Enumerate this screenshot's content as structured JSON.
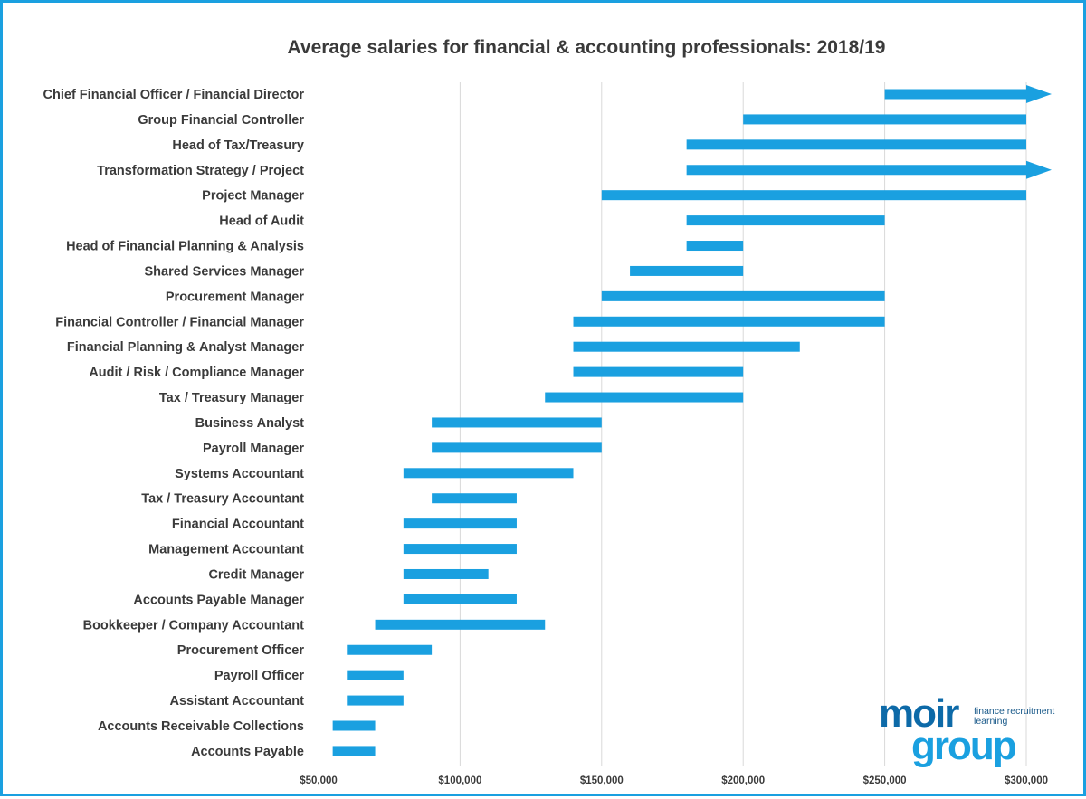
{
  "chart_data": {
    "type": "bar",
    "subtype": "floating-range-horizontal",
    "title": "Average salaries for financial & accounting professionals: 2018/19",
    "xlim": [
      50000,
      300000
    ],
    "x_ticks": [
      50000,
      100000,
      150000,
      200000,
      250000,
      300000
    ],
    "x_tick_labels": [
      "$50,000",
      "$100,000",
      "$150,000",
      "$200,000",
      "$250,000",
      "$300,000"
    ],
    "grid": "vertical",
    "bar_color": "#1aa0e0",
    "categories": [
      "Chief Financial Officer / Financial Director",
      "Group Financial Controller",
      "Head of Tax/Treasury",
      "Transformation Strategy / Project",
      "Project Manager",
      "Head of Audit",
      "Head of Financial Planning & Analysis",
      "Shared Services Manager",
      "Procurement Manager",
      "Financial Controller / Financial Manager",
      "Financial Planning & Analyst Manager",
      "Audit / Risk / Compliance Manager",
      "Tax / Treasury Manager",
      "Business Analyst",
      "Payroll Manager",
      "Systems Accountant",
      "Tax / Treasury Accountant",
      "Financial Accountant",
      "Management Accountant",
      "Credit Manager",
      "Accounts Payable Manager",
      "Bookkeeper / Company Accountant",
      "Procurement Officer",
      "Payroll Officer",
      "Assistant Accountant",
      "Accounts Receivable Collections",
      "Accounts Payable"
    ],
    "ranges": [
      {
        "min": 250000,
        "max": 300000,
        "open_ended": true
      },
      {
        "min": 200000,
        "max": 300000,
        "open_ended": false
      },
      {
        "min": 180000,
        "max": 300000,
        "open_ended": false
      },
      {
        "min": 180000,
        "max": 300000,
        "open_ended": true
      },
      {
        "min": 150000,
        "max": 300000,
        "open_ended": false
      },
      {
        "min": 180000,
        "max": 250000,
        "open_ended": false
      },
      {
        "min": 180000,
        "max": 200000,
        "open_ended": false
      },
      {
        "min": 160000,
        "max": 200000,
        "open_ended": false
      },
      {
        "min": 150000,
        "max": 250000,
        "open_ended": false
      },
      {
        "min": 140000,
        "max": 250000,
        "open_ended": false
      },
      {
        "min": 140000,
        "max": 220000,
        "open_ended": false
      },
      {
        "min": 140000,
        "max": 200000,
        "open_ended": false
      },
      {
        "min": 130000,
        "max": 200000,
        "open_ended": false
      },
      {
        "min": 90000,
        "max": 150000,
        "open_ended": false
      },
      {
        "min": 90000,
        "max": 150000,
        "open_ended": false
      },
      {
        "min": 80000,
        "max": 140000,
        "open_ended": false
      },
      {
        "min": 90000,
        "max": 120000,
        "open_ended": false
      },
      {
        "min": 80000,
        "max": 120000,
        "open_ended": false
      },
      {
        "min": 80000,
        "max": 120000,
        "open_ended": false
      },
      {
        "min": 80000,
        "max": 110000,
        "open_ended": false
      },
      {
        "min": 80000,
        "max": 120000,
        "open_ended": false
      },
      {
        "min": 70000,
        "max": 130000,
        "open_ended": false
      },
      {
        "min": 60000,
        "max": 90000,
        "open_ended": false
      },
      {
        "min": 60000,
        "max": 80000,
        "open_ended": false
      },
      {
        "min": 60000,
        "max": 80000,
        "open_ended": false
      },
      {
        "min": 55000,
        "max": 70000,
        "open_ended": false
      },
      {
        "min": 55000,
        "max": 70000,
        "open_ended": false
      }
    ]
  },
  "logo": {
    "word1": "moir",
    "word2": "group",
    "tagline_line1": "finance recruitment",
    "tagline_line2": "learning"
  }
}
